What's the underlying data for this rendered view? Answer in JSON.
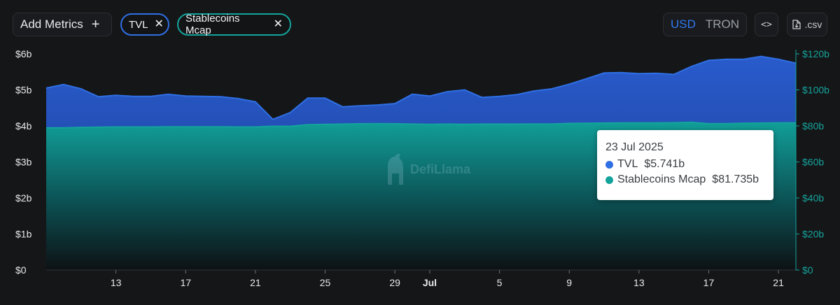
{
  "toolbar": {
    "add_metrics_label": "Add Metrics",
    "add_icon": "plus-icon",
    "pills": [
      {
        "label": "TVL",
        "color": "#2f6fe4"
      },
      {
        "label": "Stablecoins Mcap",
        "color": "#14a39b"
      }
    ],
    "currency": {
      "options": [
        "USD",
        "TRON"
      ],
      "selected": "USD"
    },
    "embed_label": "<>",
    "csv_label": ".csv"
  },
  "tooltip": {
    "date": "23 Jul 2025",
    "rows": [
      {
        "name": "TVL",
        "value": "$5.741b",
        "color": "#2f6fe4"
      },
      {
        "name": "Stablecoins Mcap",
        "value": "$81.735b",
        "color": "#14a39b"
      }
    ]
  },
  "watermark": "DefiLlama",
  "chart_data": {
    "type": "area",
    "start_date": "2025-06-09",
    "x_tick_labels": [
      "13",
      "17",
      "21",
      "25",
      "29",
      "Jul",
      "5",
      "9",
      "13",
      "17",
      "21"
    ],
    "x_tick_dates": [
      "2025-06-13",
      "2025-06-17",
      "2025-06-21",
      "2025-06-25",
      "2025-06-29",
      "2025-07-01",
      "2025-07-05",
      "2025-07-09",
      "2025-07-13",
      "2025-07-17",
      "2025-07-21"
    ],
    "y_left": {
      "ticks": [
        "$0",
        "$1b",
        "$2b",
        "$3b",
        "$4b",
        "$5b",
        "$6b"
      ],
      "range": [
        0,
        6
      ]
    },
    "y_right": {
      "ticks": [
        "$0",
        "$20b",
        "$40b",
        "$60b",
        "$80b",
        "$100b",
        "$120b"
      ],
      "range": [
        0,
        120
      ]
    },
    "series": [
      {
        "name": "TVL",
        "axis": "left",
        "unit": "b",
        "color": "#2f6fe4",
        "values": [
          5.05,
          5.15,
          5.03,
          4.81,
          4.85,
          4.82,
          4.82,
          4.88,
          4.83,
          4.82,
          4.81,
          4.76,
          4.67,
          4.18,
          4.37,
          4.77,
          4.77,
          4.53,
          4.56,
          4.58,
          4.62,
          4.88,
          4.83,
          4.95,
          5.0,
          4.79,
          4.82,
          4.87,
          4.97,
          5.03,
          5.16,
          5.31,
          5.47,
          5.48,
          5.45,
          5.46,
          5.43,
          5.65,
          5.82,
          5.85,
          5.85,
          5.93,
          5.85,
          5.741
        ]
      },
      {
        "name": "Stablecoins Mcap",
        "axis": "right",
        "unit": "b",
        "color": "#14a39b",
        "values": [
          78.9,
          78.9,
          79.2,
          79.3,
          79.4,
          79.4,
          79.4,
          79.5,
          79.5,
          79.5,
          79.5,
          79.4,
          79.4,
          79.8,
          79.8,
          80.7,
          80.9,
          81.0,
          81.2,
          81.3,
          81.2,
          81.0,
          80.9,
          81.0,
          80.9,
          81.0,
          81.0,
          81.0,
          81.1,
          81.1,
          81.4,
          81.5,
          81.6,
          81.7,
          81.7,
          81.7,
          81.8,
          82.0,
          81.3,
          81.3,
          81.5,
          81.6,
          81.7,
          81.735
        ]
      }
    ],
    "grid": false,
    "highlighted_date": "23 Jul 2025"
  }
}
